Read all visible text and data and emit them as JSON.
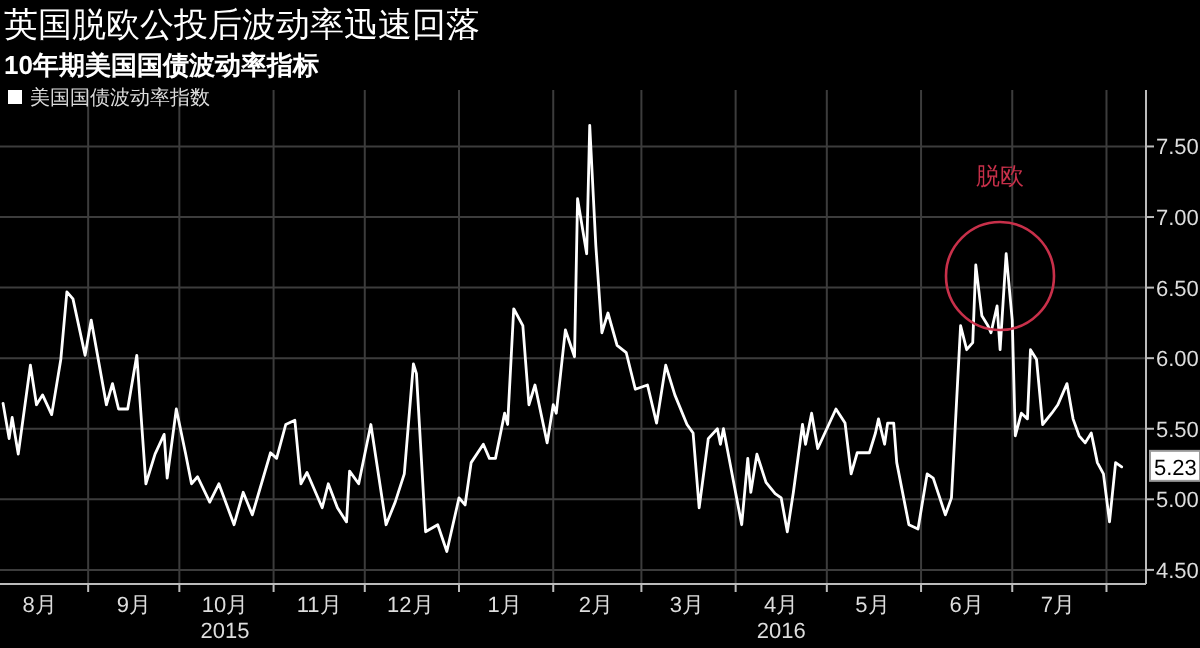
{
  "chart_data": {
    "type": "line",
    "title": "英国脱欧公投后波动率迅速回落",
    "subtitle": "10年期美国国债波动率指标",
    "x": [
      "2015-08-04",
      "2015-08-06",
      "2015-08-07",
      "2015-08-09",
      "2015-08-13",
      "2015-08-15",
      "2015-08-17",
      "2015-08-20",
      "2015-08-23",
      "2015-08-25",
      "2015-08-27",
      "2015-08-31",
      "2015-09-02",
      "2015-09-07",
      "2015-09-09",
      "2015-09-11",
      "2015-09-14",
      "2015-09-17",
      "2015-09-20",
      "2015-09-23",
      "2015-09-26",
      "2015-09-27",
      "2015-09-30",
      "2015-10-03",
      "2015-10-05",
      "2015-10-07",
      "2015-10-11",
      "2015-10-14",
      "2015-10-19",
      "2015-10-22",
      "2015-10-25",
      "2015-10-31",
      "2015-11-02",
      "2015-11-05",
      "2015-11-08",
      "2015-11-10",
      "2015-11-12",
      "2015-11-17",
      "2015-11-19",
      "2015-11-22",
      "2015-11-25",
      "2015-11-26",
      "2015-11-29",
      "2015-12-03",
      "2015-12-08",
      "2015-12-11",
      "2015-12-14",
      "2015-12-17",
      "2015-12-18",
      "2015-12-21",
      "2015-12-25",
      "2015-12-28",
      "2016-01-01",
      "2016-01-03",
      "2016-01-05",
      "2016-01-09",
      "2016-01-11",
      "2016-01-13",
      "2016-01-16",
      "2016-01-17",
      "2016-01-19",
      "2016-01-22",
      "2016-01-24",
      "2016-01-26",
      "2016-01-30",
      "2016-02-01",
      "2016-02-02",
      "2016-02-05",
      "2016-02-08",
      "2016-02-09",
      "2016-02-12",
      "2016-02-13",
      "2016-02-15",
      "2016-02-17",
      "2016-02-19",
      "2016-02-22",
      "2016-02-25",
      "2016-02-28",
      "2016-03-03",
      "2016-03-06",
      "2016-03-09",
      "2016-03-12",
      "2016-03-16",
      "2016-03-18",
      "2016-03-20",
      "2016-03-23",
      "2016-03-26",
      "2016-03-27",
      "2016-03-28",
      "2016-04-03",
      "2016-04-05",
      "2016-04-06",
      "2016-04-08",
      "2016-04-11",
      "2016-04-14",
      "2016-04-16",
      "2016-04-18",
      "2016-04-20",
      "2016-04-23",
      "2016-04-24",
      "2016-04-26",
      "2016-04-28",
      "2016-05-01",
      "2016-05-04",
      "2016-05-07",
      "2016-05-09",
      "2016-05-11",
      "2016-05-15",
      "2016-05-17",
      "2016-05-18",
      "2016-05-20",
      "2016-05-21",
      "2016-05-23",
      "2016-05-24",
      "2016-05-28",
      "2016-05-31",
      "2016-06-03",
      "2016-06-05",
      "2016-06-09",
      "2016-06-11",
      "2016-06-14",
      "2016-06-16",
      "2016-06-18",
      "2016-06-19",
      "2016-06-21",
      "2016-06-23",
      "2016-06-24",
      "2016-06-26",
      "2016-06-27",
      "2016-06-29",
      "2016-07-01",
      "2016-07-02",
      "2016-07-04",
      "2016-07-06",
      "2016-07-07",
      "2016-07-09",
      "2016-07-11",
      "2016-07-14",
      "2016-07-16",
      "2016-07-19",
      "2016-07-21",
      "2016-07-23",
      "2016-07-25",
      "2016-07-27",
      "2016-07-29",
      "2016-07-31",
      "2016-08-02",
      "2016-08-04",
      "2016-08-06"
    ],
    "series": [
      {
        "name": "美国国债波动率指数",
        "color": "#ffffff",
        "values": [
          5.68,
          5.43,
          5.58,
          5.32,
          5.95,
          5.67,
          5.74,
          5.6,
          5.99,
          6.47,
          6.42,
          6.02,
          6.27,
          5.67,
          5.82,
          5.64,
          5.64,
          6.02,
          5.11,
          5.32,
          5.46,
          5.15,
          5.64,
          5.33,
          5.11,
          5.16,
          4.98,
          5.11,
          4.82,
          5.05,
          4.89,
          5.33,
          5.29,
          5.53,
          5.56,
          5.11,
          5.19,
          4.94,
          5.11,
          4.94,
          4.84,
          5.2,
          5.11,
          5.53,
          4.82,
          4.98,
          5.18,
          5.96,
          5.89,
          4.77,
          4.82,
          4.63,
          5.01,
          4.96,
          5.26,
          5.39,
          5.29,
          5.29,
          5.61,
          5.53,
          6.35,
          6.23,
          5.67,
          5.81,
          5.4,
          5.67,
          5.61,
          6.2,
          6.01,
          7.13,
          6.74,
          7.65,
          6.8,
          6.18,
          6.32,
          6.09,
          6.04,
          5.78,
          5.81,
          5.54,
          5.95,
          5.74,
          5.53,
          5.47,
          4.94,
          5.43,
          5.5,
          5.39,
          5.5,
          4.82,
          5.29,
          5.05,
          5.32,
          5.12,
          5.04,
          5.01,
          4.77,
          5.05,
          5.53,
          5.39,
          5.61,
          5.36,
          5.5,
          5.64,
          5.54,
          5.18,
          5.33,
          5.33,
          5.47,
          5.57,
          5.39,
          5.54,
          5.54,
          5.26,
          4.82,
          4.79,
          5.18,
          5.15,
          4.89,
          5.01,
          6.23,
          6.06,
          6.11,
          6.66,
          6.3,
          6.23,
          6.18,
          6.37,
          6.06,
          6.74,
          6.27,
          5.45,
          5.61,
          5.57,
          6.06,
          5.99,
          5.53,
          5.61,
          5.67,
          5.82,
          5.57,
          5.45,
          5.4,
          5.47,
          5.26,
          5.18,
          4.84,
          5.26,
          5.23
        ]
      }
    ],
    "xlim": [
      "2015-08-03",
      "2016-08-14"
    ],
    "ylim": [
      4.4,
      7.9
    ],
    "xticks": [
      {
        "value": "2015-08-16",
        "label": "8月"
      },
      {
        "value": "2015-09-01",
        "label": null
      },
      {
        "value": "2015-09-16",
        "label": "9月"
      },
      {
        "value": "2015-10-01",
        "label": null
      },
      {
        "value": "2015-10-16",
        "label": "10月\n2015"
      },
      {
        "value": "2015-11-01",
        "label": null
      },
      {
        "value": "2015-11-16",
        "label": "11月"
      },
      {
        "value": "2015-12-01",
        "label": null
      },
      {
        "value": "2015-12-16",
        "label": "12月"
      },
      {
        "value": "2016-01-01",
        "label": null
      },
      {
        "value": "2016-01-16",
        "label": "1月"
      },
      {
        "value": "2016-02-01",
        "label": null
      },
      {
        "value": "2016-02-15",
        "label": "2月"
      },
      {
        "value": "2016-03-01",
        "label": null
      },
      {
        "value": "2016-03-16",
        "label": "3月"
      },
      {
        "value": "2016-04-01",
        "label": null
      },
      {
        "value": "2016-04-16",
        "label": "4月\n2016"
      },
      {
        "value": "2016-05-01",
        "label": null
      },
      {
        "value": "2016-05-16",
        "label": "5月"
      },
      {
        "value": "2016-06-01",
        "label": null
      },
      {
        "value": "2016-06-16",
        "label": "6月"
      },
      {
        "value": "2016-07-01",
        "label": null
      },
      {
        "value": "2016-07-16",
        "label": "7月"
      },
      {
        "value": "2016-08-01",
        "label": null
      }
    ],
    "yticks": [
      {
        "value": 4.5,
        "label": "4.50"
      },
      {
        "value": 5,
        "label": "5.00"
      },
      {
        "value": 5.5,
        "label": "5.50"
      },
      {
        "value": 6,
        "label": "6.00"
      },
      {
        "value": 6.5,
        "label": "6.50"
      },
      {
        "value": 7,
        "label": "7.00"
      },
      {
        "value": 7.5,
        "label": "7.50"
      }
    ],
    "grid": true,
    "legend": "top left",
    "annotations": [
      {
        "text": "5.23",
        "x": "2016-08-06",
        "y": 5.23
      },
      "脱欧"
    ]
  }
}
